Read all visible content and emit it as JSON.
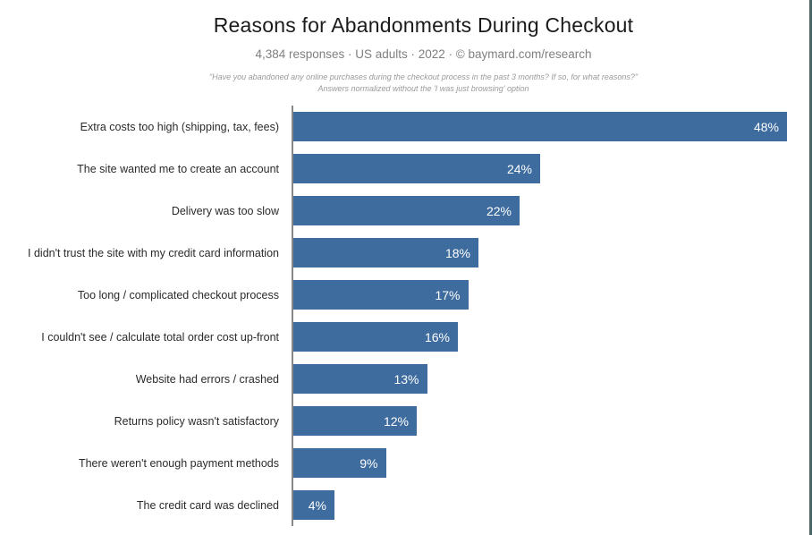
{
  "header": {
    "title": "Reasons for Abandonments During Checkout",
    "subtitle": "4,384 responses  ·  US adults  ·  2022  ·  ©  baymard.com/research",
    "note_line1": "\"Have you abandoned any online purchases during the checkout process in the past 3 months? If so, for what reasons?\"",
    "note_line2": "Answers normalized without the 'I was just browsing' option"
  },
  "chart_data": {
    "type": "bar",
    "orientation": "horizontal",
    "title": "Reasons for Abandonments During Checkout",
    "subtitle": "4,384 responses · US adults · 2022 · © baymard.com/research",
    "categories": [
      "Extra costs too high (shipping, tax, fees)",
      "The site wanted me to create an account",
      "Delivery was too slow",
      "I didn't trust the site with my credit card information",
      "Too long / complicated checkout process",
      "I couldn't see / calculate total order cost up-front",
      "Website had errors / crashed",
      "Returns policy wasn't satisfactory",
      "There weren't enough payment methods",
      "The credit card was declined"
    ],
    "values": [
      48,
      24,
      22,
      18,
      17,
      16,
      13,
      12,
      9,
      4
    ],
    "value_suffix": "%",
    "xlabel": "",
    "ylabel": "",
    "xlim": [
      0,
      50
    ],
    "grid": false,
    "legend": null,
    "bar_color": "#3E6C9E",
    "value_label_color": "#FFFFFF",
    "axis_line_color": "#878787",
    "page_edge_color": "#4D6466"
  }
}
